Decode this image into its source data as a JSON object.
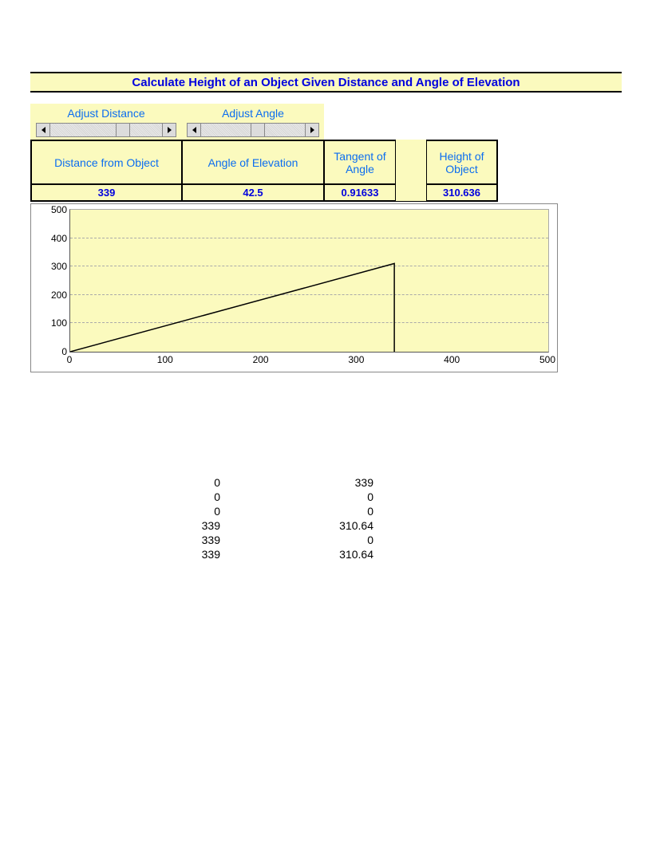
{
  "title": "Calculate Height of an Object Given Distance and Angle of Elevation",
  "adjust": {
    "distance_label": "Adjust Distance",
    "angle_label": "Adjust Angle",
    "distance_slider": {
      "track_width": 140,
      "thumb_pos": 82
    },
    "angle_slider": {
      "track_width": 130,
      "thumb_pos": 62
    }
  },
  "headers": {
    "distance": "Distance from Object",
    "angle": "Angle of Elevation",
    "tangent": "Tangent of Angle",
    "height": "Height of Object"
  },
  "values": {
    "distance": "339",
    "angle": "42.5",
    "tangent": "0.91633",
    "height": "310.636"
  },
  "chart": {
    "type": "line",
    "background_color": "#fbfabe",
    "grid_color": "#aaaaaa",
    "axis_color": "#555555",
    "line_color": "#000000",
    "line_width": 1.5,
    "xlim": [
      0,
      500
    ],
    "ylim": [
      0,
      500
    ],
    "xtick_step": 100,
    "ytick_step": 100,
    "xticks": [
      "0",
      "100",
      "200",
      "300",
      "400",
      "500"
    ],
    "yticks": [
      "0",
      "100",
      "200",
      "300",
      "400",
      "500"
    ],
    "series": {
      "x": [
        0,
        339,
        339
      ],
      "y": [
        0,
        310.636,
        0
      ]
    }
  },
  "points_table": {
    "col1": [
      "0",
      "0",
      "0",
      "339",
      "339",
      "339"
    ],
    "col2": [
      "339",
      "0",
      "0",
      "310.64",
      "0",
      "310.64"
    ]
  },
  "colors": {
    "yellow_bg": "#fbfabe",
    "blue_link": "#0b6df0",
    "blue_bold": "#0000de"
  }
}
